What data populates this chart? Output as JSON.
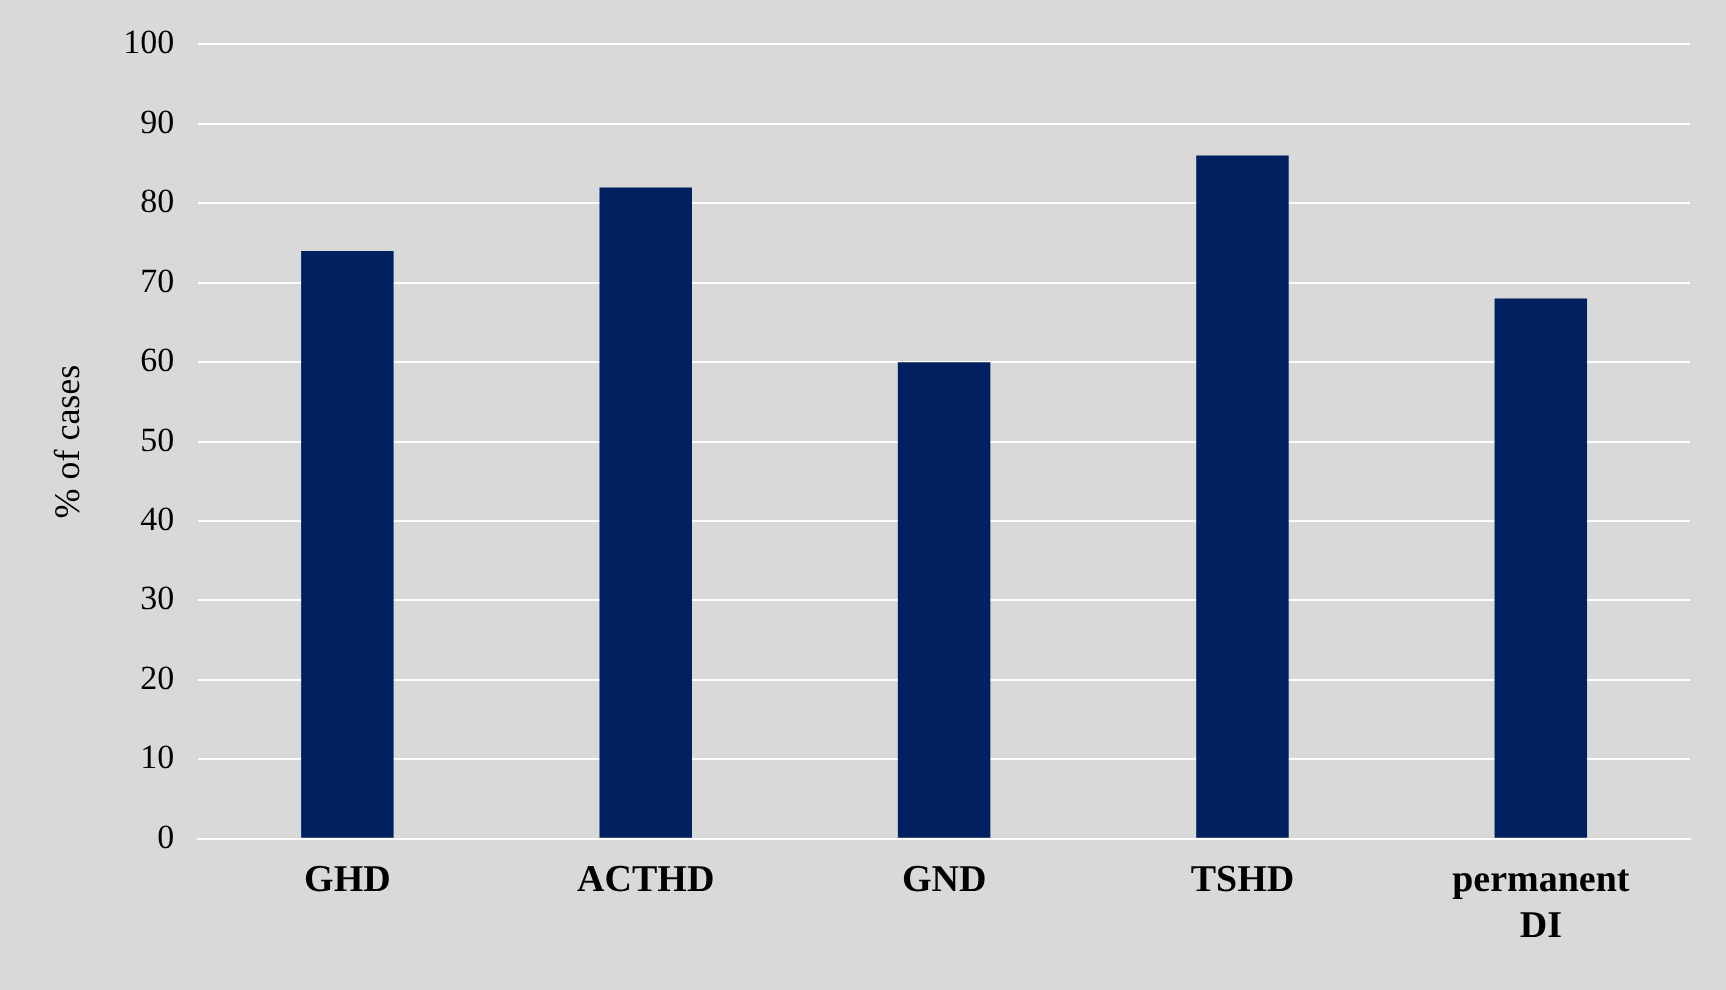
{
  "chart_data": {
    "type": "bar",
    "ylabel": "% of cases",
    "categories": [
      "GHD",
      "ACTHD",
      "GND",
      "TSHD",
      "permanent DI"
    ],
    "values": [
      74,
      82,
      60,
      86,
      68
    ],
    "color": "#002060",
    "ylim": [
      0,
      100
    ],
    "yticks": [
      0,
      10,
      20,
      30,
      40,
      50,
      60,
      70,
      80,
      90,
      100
    ],
    "grid": "y",
    "legend": false
  }
}
